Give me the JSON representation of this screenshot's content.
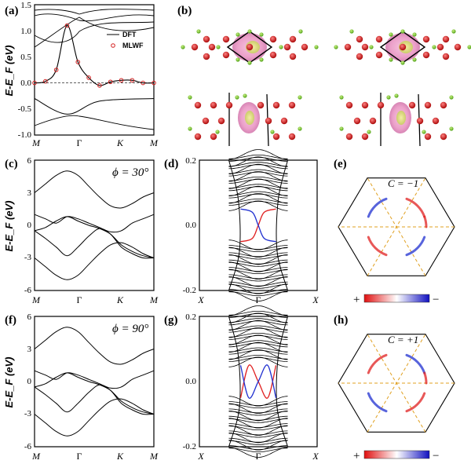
{
  "panels": {
    "a": {
      "label": "(a)"
    },
    "b": {
      "label": "(b)"
    },
    "c": {
      "label": "(c)",
      "annotation": "ϕ = 30°"
    },
    "d": {
      "label": "(d)"
    },
    "e": {
      "label": "(e)",
      "chern": "C = −1",
      "plus": "+",
      "minus": "−"
    },
    "f": {
      "label": "(f)",
      "annotation": "ϕ = 90°"
    },
    "g": {
      "label": "(g)"
    },
    "h": {
      "label": "(h)",
      "chern": "C = +1",
      "plus": "+",
      "minus": "−"
    }
  },
  "colors": {
    "dft": "#000000",
    "mlwf": "#d42020",
    "edge_red": "#e02020",
    "edge_blue": "#2030d0",
    "bz_dash": "#e0a020",
    "atom_red": "#d42020",
    "atom_green": "#7ed321",
    "orbital_pink": "#f0a0c8"
  },
  "chart_data": [
    {
      "panel": "a",
      "type": "line",
      "ylabel": "E-E_F (eV)",
      "ylim": [
        -1.0,
        1.5
      ],
      "yticks": [
        "1.5",
        "1.0",
        "0.5",
        "0.0",
        "-0.5",
        "-1.0"
      ],
      "xticks": [
        "M",
        "Γ",
        "K",
        "M"
      ],
      "legend": "top-right",
      "series": [
        {
          "name": "DFT",
          "style": "line",
          "x": [
            0,
            0.25,
            0.5,
            0.75,
            1,
            1.25,
            1.5,
            1.75,
            2,
            2.25,
            2.5,
            2.75
          ],
          "values": [
            0.0,
            0.03,
            0.25,
            1.1,
            0.4,
            0.1,
            -0.05,
            0.02,
            0.05,
            0.05,
            0.0,
            0.0
          ]
        },
        {
          "name": "MLWF",
          "style": "markers",
          "x": [
            0,
            0.25,
            0.5,
            0.75,
            1,
            1.25,
            1.5,
            1.75,
            2,
            2.25,
            2.5,
            2.75
          ],
          "values": [
            0.0,
            0.03,
            0.25,
            1.1,
            0.4,
            0.1,
            -0.05,
            0.02,
            0.05,
            0.05,
            0.0,
            0.0
          ]
        }
      ]
    },
    {
      "panel": "c",
      "type": "line",
      "ylabel": "E-E_F (eV)",
      "ylim": [
        -6,
        6
      ],
      "yticks": [
        "6",
        "3",
        "0",
        "-3",
        "-6"
      ],
      "xticks": [
        "M",
        "Γ",
        "K",
        "M"
      ],
      "x": [
        0,
        0.25,
        0.5,
        0.75,
        1,
        1.25,
        1.5,
        1.75,
        2,
        2.25,
        2.5,
        2.75
      ],
      "series": [
        {
          "values": [
            3.0,
            3.8,
            4.6,
            5.0,
            4.6,
            3.6,
            2.6,
            1.8,
            1.6,
            2.0,
            2.6,
            3.0
          ]
        },
        {
          "values": [
            1.0,
            0.6,
            0.2,
            0.8,
            0.6,
            0.2,
            -0.2,
            -0.6,
            -0.5,
            0.2,
            0.6,
            1.0
          ]
        },
        {
          "values": [
            -0.5,
            -0.2,
            0.4,
            0.8,
            0.4,
            0.0,
            -0.3,
            -0.8,
            -1.8,
            -2.4,
            -2.8,
            -3.0
          ]
        },
        {
          "values": [
            -0.5,
            -1.2,
            -2.0,
            -2.8,
            -2.0,
            -1.0,
            -0.3,
            -0.8,
            -2.0,
            -2.6,
            -3.0,
            -3.0
          ]
        },
        {
          "values": [
            -3.0,
            -3.8,
            -4.6,
            -5.0,
            -4.6,
            -3.6,
            -2.6,
            -1.8,
            -1.6,
            -2.0,
            -2.6,
            -3.0
          ]
        }
      ]
    },
    {
      "panel": "d",
      "type": "line",
      "ylim": [
        -0.2,
        0.2
      ],
      "yticks": [
        "0.2",
        "0.0",
        "-0.2"
      ],
      "xticks": [
        "X",
        "Γ",
        "X"
      ],
      "series": [
        {
          "color": "red",
          "x": [
            0.35,
            0.45,
            0.5,
            0.55,
            0.65
          ],
          "values": [
            -0.05,
            -0.04,
            0.0,
            0.04,
            0.05
          ]
        },
        {
          "color": "blue",
          "x": [
            0.35,
            0.45,
            0.5,
            0.55,
            0.65
          ],
          "values": [
            0.05,
            0.04,
            0.0,
            -0.04,
            -0.05
          ]
        }
      ]
    },
    {
      "panel": "f",
      "type": "line",
      "ylabel": "E-E_F (eV)",
      "ylim": [
        -6,
        6
      ],
      "yticks": [
        "6",
        "3",
        "0",
        "-3",
        "-6"
      ],
      "xticks": [
        "M",
        "Γ",
        "K",
        "M"
      ],
      "x": [
        0,
        0.25,
        0.5,
        0.75,
        1,
        1.25,
        1.5,
        1.75,
        2,
        2.25,
        2.5,
        2.75
      ],
      "series": [
        {
          "values": [
            3.0,
            3.8,
            4.6,
            5.0,
            4.6,
            3.6,
            2.6,
            1.8,
            1.6,
            2.0,
            2.6,
            3.0
          ]
        },
        {
          "values": [
            1.0,
            0.6,
            0.2,
            0.8,
            0.6,
            0.2,
            -0.2,
            -0.6,
            -0.5,
            0.2,
            0.6,
            1.0
          ]
        },
        {
          "values": [
            -0.5,
            -0.2,
            0.4,
            0.8,
            0.4,
            0.0,
            -0.3,
            -0.8,
            -1.8,
            -2.4,
            -2.8,
            -3.0
          ]
        },
        {
          "values": [
            -0.5,
            -1.2,
            -2.0,
            -2.8,
            -2.0,
            -1.0,
            -0.3,
            -0.8,
            -2.0,
            -2.6,
            -3.0,
            -3.0
          ]
        },
        {
          "values": [
            -3.0,
            -3.8,
            -4.6,
            -5.0,
            -4.6,
            -3.6,
            -2.6,
            -1.8,
            -1.6,
            -2.0,
            -2.6,
            -3.0
          ]
        }
      ]
    },
    {
      "panel": "g",
      "type": "line",
      "ylim": [
        -0.2,
        0.2
      ],
      "yticks": [
        "0.2",
        "0.0",
        "-0.2"
      ],
      "xticks": [
        "X",
        "Γ",
        "X"
      ],
      "series": [
        {
          "color": "red",
          "x": [
            0.35,
            0.42,
            0.5,
            0.58,
            0.65
          ],
          "values": [
            -0.05,
            0.05,
            0.0,
            -0.05,
            0.05
          ]
        },
        {
          "color": "blue",
          "x": [
            0.35,
            0.42,
            0.5,
            0.58,
            0.65
          ],
          "values": [
            0.05,
            -0.05,
            0.0,
            0.05,
            -0.05
          ]
        }
      ]
    }
  ]
}
